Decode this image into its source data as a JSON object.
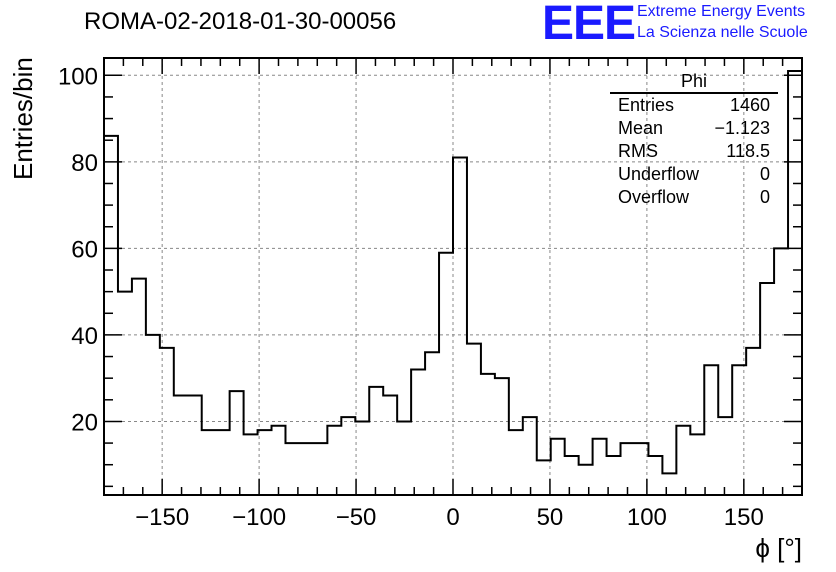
{
  "header": {
    "title": "ROMA-02-2018-01-30-00056"
  },
  "logo": {
    "mark": "EEE",
    "line1": "Extreme Energy Events",
    "line2": "La Scienza nelle Scuole"
  },
  "stats_box": {
    "title": "Phi",
    "rows": [
      {
        "label": "Entries",
        "value": "1460"
      },
      {
        "label": "Mean",
        "value": "−1.123"
      },
      {
        "label": "RMS",
        "value": "118.5"
      },
      {
        "label": "Underflow",
        "value": "0"
      },
      {
        "label": "Overflow",
        "value": "0"
      }
    ]
  },
  "colors": {
    "logo": "#1a1aff",
    "line": "#000000",
    "grid": "#888888"
  },
  "chart_data": {
    "type": "histogram",
    "xlabel": "ϕ [°]",
    "ylabel": "Entries/bin",
    "xlim": [
      -180,
      180
    ],
    "ylim": [
      3,
      104
    ],
    "bin_width": 7.2,
    "x_ticks": [
      -150,
      -100,
      -50,
      0,
      50,
      100,
      150
    ],
    "x_tick_labels": [
      "−150",
      "−100",
      "−50",
      "0",
      "50",
      "100",
      "150"
    ],
    "y_ticks": [
      20,
      40,
      60,
      80,
      100
    ],
    "y_tick_labels": [
      "20",
      "40",
      "60",
      "80",
      "100"
    ],
    "grid": true,
    "values": [
      86,
      50,
      53,
      40,
      37,
      26,
      26,
      18,
      18,
      27,
      17,
      18,
      19,
      15,
      15,
      15,
      19,
      21,
      20,
      28,
      26,
      20,
      32,
      36,
      59,
      81,
      38,
      31,
      30,
      18,
      21,
      11,
      16,
      12,
      10,
      16,
      12,
      15,
      15,
      12,
      8,
      19,
      17,
      33,
      21,
      33,
      37,
      52,
      60,
      101
    ]
  }
}
